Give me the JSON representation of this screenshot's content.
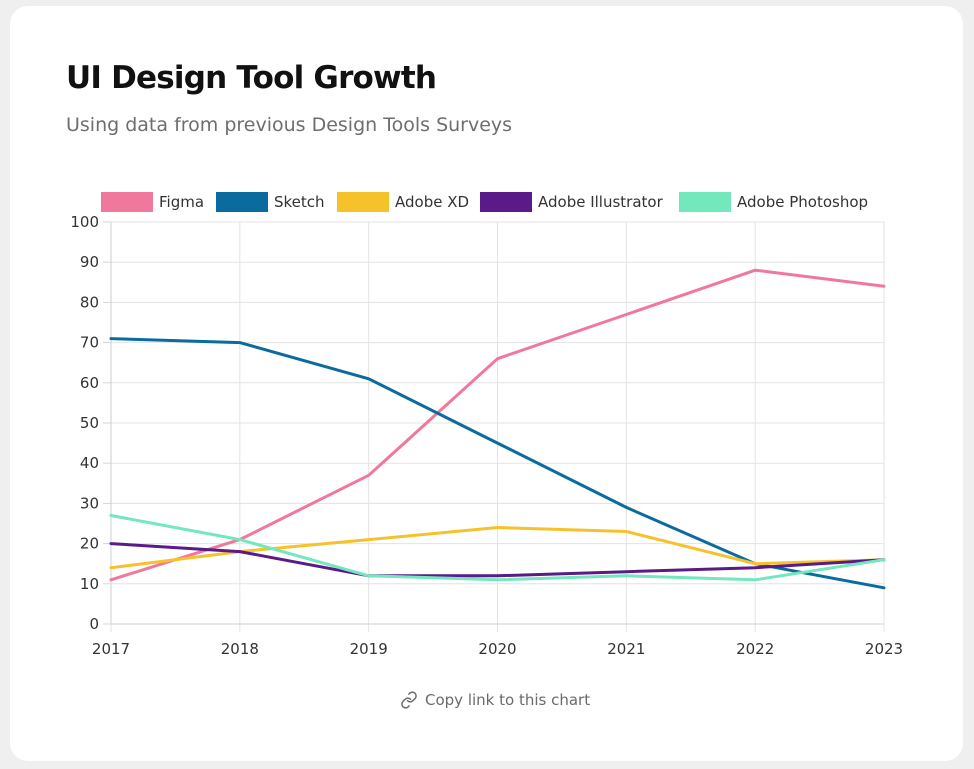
{
  "title": "UI Design Tool Growth",
  "subtitle": "Using data from previous Design Tools Surveys",
  "copy_link_label": "Copy link to this chart",
  "icons": {
    "copy_link": "link-icon"
  },
  "chart_data": {
    "type": "line",
    "title": "",
    "xlabel": "",
    "ylabel": "",
    "x": [
      "2017",
      "2018",
      "2019",
      "2020",
      "2021",
      "2022",
      "2023"
    ],
    "ylim": [
      0,
      100
    ],
    "yticks": [
      0,
      10,
      20,
      30,
      40,
      50,
      60,
      70,
      80,
      90,
      100
    ],
    "grid": true,
    "legend_position": "top",
    "series": [
      {
        "name": "Figma",
        "color": "#f0789c",
        "values": [
          11,
          21,
          37,
          66,
          77,
          88,
          84
        ]
      },
      {
        "name": "Sketch",
        "color": "#0a6b9e",
        "values": [
          71,
          70,
          61,
          45,
          29,
          15,
          9
        ]
      },
      {
        "name": "Adobe XD",
        "color": "#f6c22c",
        "values": [
          14,
          18,
          21,
          24,
          23,
          15,
          16
        ]
      },
      {
        "name": "Adobe Illustrator",
        "color": "#5a1a87",
        "values": [
          20,
          18,
          12,
          12,
          13,
          14,
          16
        ]
      },
      {
        "name": "Adobe Photoshop",
        "color": "#72e8bc",
        "values": [
          27,
          21,
          12,
          11,
          12,
          11,
          16
        ]
      }
    ]
  }
}
